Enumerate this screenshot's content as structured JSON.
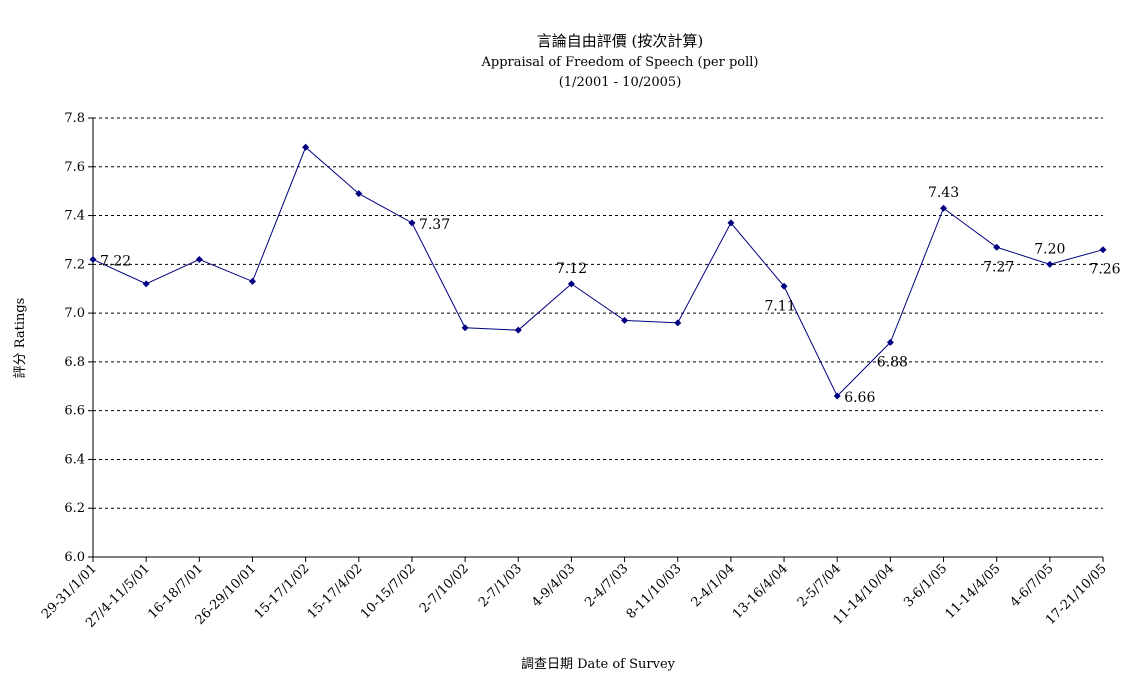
{
  "chart_data": {
    "type": "line",
    "title": "言論自由評價 (按次計算)",
    "subtitle": "Appraisal of Freedom of Speech (per poll)",
    "subtitle2": "(1/2001 - 10/2005)",
    "xlabel": "調查日期 Date of Survey",
    "ylabel": "評分 Ratings",
    "ylim": [
      6.0,
      7.8
    ],
    "yticks": [
      "6.0",
      "6.2",
      "6.4",
      "6.6",
      "6.8",
      "7.0",
      "7.2",
      "7.4",
      "7.6",
      "7.8"
    ],
    "grid": "horizontal-dashed",
    "legend": "none",
    "categories": [
      "29-31/1/01",
      "27/4-11/5/01",
      "16-18/7/01",
      "26-29/10/01",
      "15-17/1/02",
      "15-17/4/02",
      "10-15/7/02",
      "2-7/10/02",
      "2-7/1/03",
      "4-9/4/03",
      "2-4/7/03",
      "8-11/10/03",
      "2-4/1/04",
      "13-16/4/04",
      "2-5/7/04",
      "11-14/10/04",
      "3-6/1/05",
      "11-14/4/05",
      "4-6/7/05",
      "17-21/10/05"
    ],
    "series": [
      {
        "color": "#000080",
        "values": [
          7.22,
          7.12,
          7.22,
          7.13,
          7.68,
          7.49,
          7.37,
          6.94,
          6.93,
          7.12,
          6.97,
          6.96,
          7.37,
          7.11,
          6.66,
          6.88,
          7.43,
          7.27,
          7.2,
          7.26
        ]
      }
    ],
    "data_labels": [
      {
        "index": 0,
        "text": "7.22",
        "side": "right"
      },
      {
        "index": 6,
        "text": "7.37",
        "side": "right"
      },
      {
        "index": 9,
        "text": "7.12",
        "side": "above"
      },
      {
        "index": 13,
        "text": "7.11",
        "side": "below-left"
      },
      {
        "index": 14,
        "text": "6.66",
        "side": "right"
      },
      {
        "index": 15,
        "text": "6.88",
        "side": "below"
      },
      {
        "index": 16,
        "text": "7.43",
        "side": "above"
      },
      {
        "index": 17,
        "text": "7.27",
        "side": "below"
      },
      {
        "index": 18,
        "text": "7.20",
        "side": "above"
      },
      {
        "index": 19,
        "text": "7.26",
        "side": "below"
      }
    ]
  }
}
